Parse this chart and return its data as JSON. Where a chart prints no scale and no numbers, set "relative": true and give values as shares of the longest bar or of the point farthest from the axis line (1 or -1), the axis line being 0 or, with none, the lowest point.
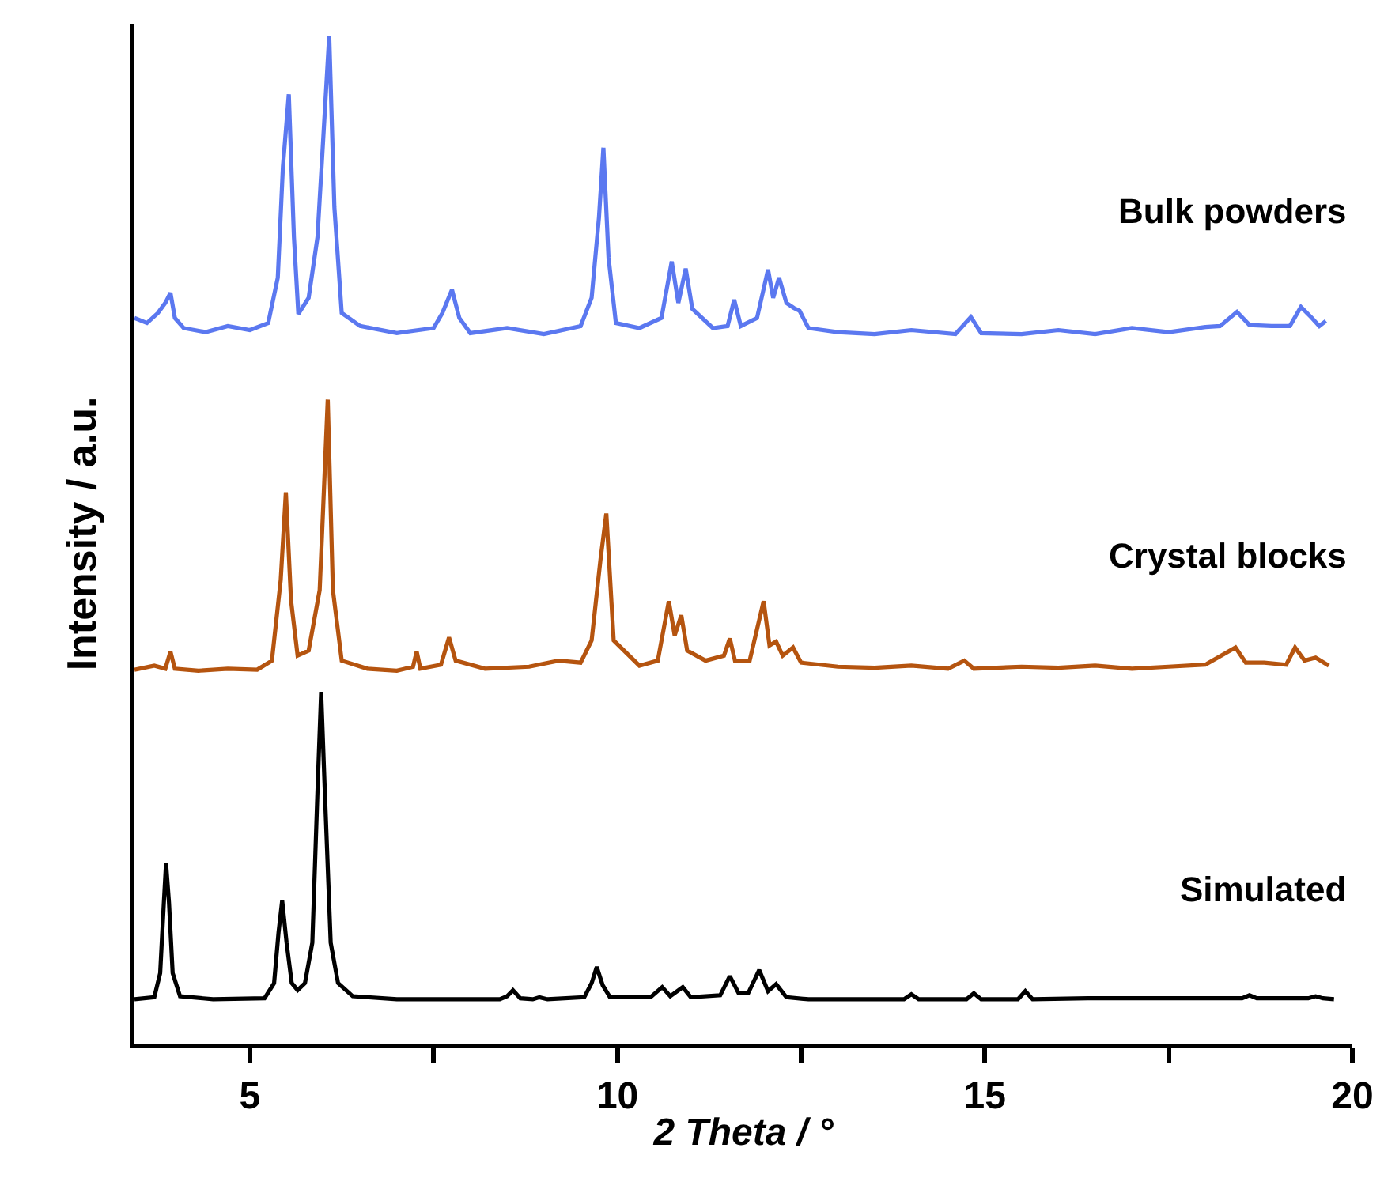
{
  "chart_data": {
    "type": "line",
    "relative": true,
    "xlabel": "2 Theta / °",
    "ylabel": "Intensity / a.u.",
    "xlim": [
      3.43,
      20
    ],
    "xticks": [
      5,
      {
        "value": 7.5,
        "label": null
      },
      10,
      {
        "value": 12.5,
        "label": null
      },
      15,
      {
        "value": 17.5,
        "label": null
      },
      20
    ],
    "legend": false,
    "grid": false,
    "marker": "none",
    "line_style": "solid",
    "series": [
      {
        "name": "Bulk powders",
        "color": "#5b78f0",
        "x": [
          3.43,
          3.6,
          3.75,
          3.85,
          3.92,
          3.98,
          4.1,
          4.4,
          4.7,
          5.0,
          5.25,
          5.38,
          5.45,
          5.53,
          5.6,
          5.66,
          5.8,
          5.92,
          6.0,
          6.08,
          6.15,
          6.25,
          6.5,
          7.0,
          7.5,
          7.62,
          7.75,
          7.85,
          8.0,
          8.5,
          9.0,
          9.5,
          9.65,
          9.75,
          9.81,
          9.88,
          9.98,
          10.3,
          10.6,
          10.74,
          10.83,
          10.93,
          11.02,
          11.3,
          11.5,
          11.59,
          11.68,
          11.9,
          12.05,
          12.12,
          12.2,
          12.3,
          12.4,
          12.48,
          12.6,
          13.0,
          13.5,
          14.0,
          14.6,
          14.81,
          14.95,
          15.5,
          16.0,
          16.5,
          17.0,
          17.5,
          18.0,
          18.2,
          18.43,
          18.6,
          18.9,
          19.15,
          19.3,
          19.45,
          19.55,
          19.64
        ],
        "values": [
          0.72,
          0.715,
          0.725,
          0.735,
          0.745,
          0.72,
          0.71,
          0.706,
          0.712,
          0.708,
          0.715,
          0.76,
          0.87,
          0.942,
          0.8,
          0.724,
          0.74,
          0.8,
          0.9,
          1.0,
          0.83,
          0.725,
          0.712,
          0.705,
          0.71,
          0.725,
          0.748,
          0.72,
          0.705,
          0.71,
          0.704,
          0.712,
          0.74,
          0.82,
          0.889,
          0.78,
          0.715,
          0.71,
          0.72,
          0.776,
          0.735,
          0.769,
          0.729,
          0.71,
          0.712,
          0.738,
          0.712,
          0.72,
          0.768,
          0.74,
          0.76,
          0.735,
          0.73,
          0.727,
          0.71,
          0.706,
          0.704,
          0.708,
          0.704,
          0.721,
          0.705,
          0.704,
          0.708,
          0.704,
          0.71,
          0.706,
          0.711,
          0.712,
          0.726,
          0.713,
          0.712,
          0.712,
          0.731,
          0.72,
          0.712,
          0.717
        ]
      },
      {
        "name": "Crystal blocks",
        "color": "#b5540f",
        "x": [
          3.43,
          3.7,
          3.85,
          3.92,
          3.98,
          4.3,
          4.7,
          5.1,
          5.3,
          5.42,
          5.49,
          5.56,
          5.65,
          5.8,
          5.95,
          6.06,
          6.13,
          6.25,
          6.6,
          7.0,
          7.22,
          7.27,
          7.32,
          7.6,
          7.71,
          7.8,
          8.2,
          8.8,
          9.2,
          9.5,
          9.65,
          9.77,
          9.85,
          9.95,
          10.3,
          10.55,
          10.7,
          10.78,
          10.87,
          10.95,
          11.2,
          11.45,
          11.53,
          11.6,
          11.8,
          11.99,
          12.07,
          12.16,
          12.25,
          12.39,
          12.5,
          13.0,
          13.5,
          14.0,
          14.5,
          14.72,
          14.85,
          15.5,
          16.0,
          16.5,
          17.0,
          17.5,
          18.0,
          18.41,
          18.55,
          18.8,
          19.1,
          19.22,
          19.35,
          19.5,
          19.68
        ],
        "values": [
          0.371,
          0.375,
          0.372,
          0.389,
          0.372,
          0.37,
          0.372,
          0.371,
          0.38,
          0.46,
          0.547,
          0.44,
          0.385,
          0.39,
          0.45,
          0.639,
          0.45,
          0.38,
          0.372,
          0.37,
          0.374,
          0.389,
          0.372,
          0.376,
          0.403,
          0.38,
          0.372,
          0.374,
          0.38,
          0.378,
          0.4,
          0.48,
          0.526,
          0.4,
          0.375,
          0.38,
          0.439,
          0.405,
          0.425,
          0.39,
          0.38,
          0.385,
          0.402,
          0.38,
          0.38,
          0.439,
          0.395,
          0.399,
          0.385,
          0.393,
          0.378,
          0.374,
          0.373,
          0.375,
          0.372,
          0.38,
          0.372,
          0.374,
          0.373,
          0.375,
          0.372,
          0.374,
          0.376,
          0.393,
          0.378,
          0.378,
          0.376,
          0.393,
          0.38,
          0.383,
          0.375
        ]
      },
      {
        "name": "Simulated",
        "color": "#000000",
        "x": [
          3.43,
          3.7,
          3.78,
          3.83,
          3.86,
          3.9,
          3.95,
          4.05,
          4.5,
          5.2,
          5.33,
          5.39,
          5.44,
          5.5,
          5.57,
          5.65,
          5.75,
          5.85,
          5.92,
          5.97,
          6.02,
          6.1,
          6.2,
          6.4,
          7.0,
          8.4,
          8.5,
          8.58,
          8.68,
          8.85,
          8.94,
          9.05,
          9.55,
          9.65,
          9.72,
          9.8,
          9.9,
          10.45,
          10.61,
          10.72,
          10.89,
          11.0,
          11.4,
          11.53,
          11.65,
          11.78,
          11.93,
          12.05,
          12.16,
          12.3,
          12.6,
          13.9,
          14.0,
          14.1,
          14.75,
          14.85,
          14.95,
          15.45,
          15.55,
          15.65,
          16.4,
          18.5,
          18.6,
          18.7,
          19.4,
          19.5,
          19.6,
          19.75
        ],
        "values": [
          0.044,
          0.046,
          0.07,
          0.14,
          0.179,
          0.14,
          0.07,
          0.047,
          0.044,
          0.045,
          0.06,
          0.11,
          0.142,
          0.1,
          0.06,
          0.053,
          0.06,
          0.1,
          0.25,
          0.349,
          0.25,
          0.1,
          0.06,
          0.047,
          0.044,
          0.044,
          0.047,
          0.053,
          0.045,
          0.044,
          0.046,
          0.044,
          0.046,
          0.06,
          0.076,
          0.058,
          0.046,
          0.046,
          0.056,
          0.047,
          0.056,
          0.046,
          0.048,
          0.067,
          0.05,
          0.05,
          0.073,
          0.052,
          0.059,
          0.046,
          0.044,
          0.044,
          0.049,
          0.044,
          0.044,
          0.05,
          0.044,
          0.044,
          0.052,
          0.044,
          0.045,
          0.045,
          0.048,
          0.045,
          0.045,
          0.047,
          0.045,
          0.044
        ]
      }
    ]
  }
}
